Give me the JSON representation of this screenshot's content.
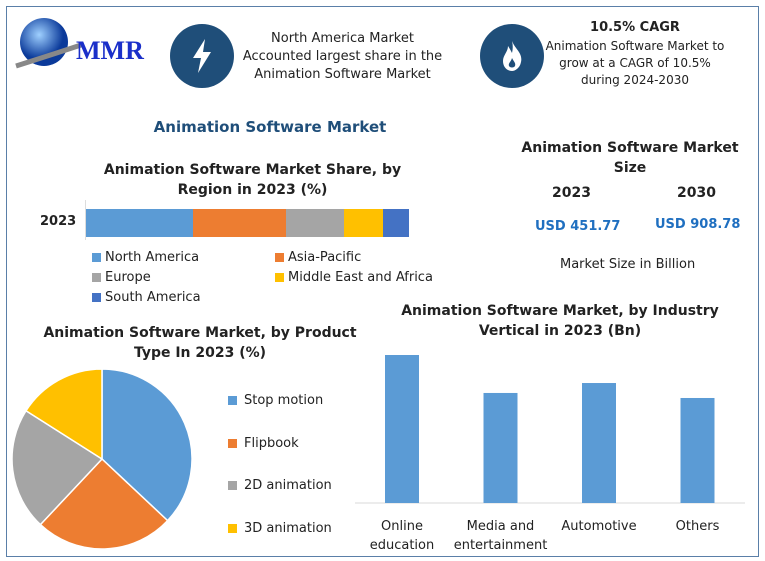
{
  "logo": {
    "text": "MMR"
  },
  "highlights": [
    {
      "icon": "lightning-icon",
      "text": "North America Market Accounted largest share in the Animation Software Market"
    },
    {
      "icon": "flame-icon",
      "title": "10.5% CAGR",
      "text": "Animation Software Market to grow at a CAGR of 10.5% during 2024-2030"
    }
  ],
  "main_title": "Animation Software Market",
  "market_size": {
    "title": "Animation Software Market Size",
    "years": [
      "2023",
      "2030"
    ],
    "values": [
      "USD 451.77",
      "USD 908.78"
    ],
    "note": "Market Size in Billion"
  },
  "colors": {
    "North America": "#5b9bd5",
    "Asia-Pacific": "#ed7d31",
    "Europe": "#a5a5a5",
    "Middle East and Africa": "#ffc000",
    "South America": "#4472c4",
    "accent": "#1f4e79"
  },
  "chart_data": [
    {
      "type": "bar",
      "orientation": "horizontal",
      "stacked": true,
      "title": "Animation Software Market Share, by Region in 2023 (%)",
      "categories": [
        "2023"
      ],
      "series": [
        {
          "name": "North America",
          "values": [
            33
          ]
        },
        {
          "name": "Asia-Pacific",
          "values": [
            29
          ]
        },
        {
          "name": "Europe",
          "values": [
            18
          ]
        },
        {
          "name": "Middle East and Africa",
          "values": [
            12
          ]
        },
        {
          "name": "South America",
          "values": [
            8
          ]
        }
      ],
      "legend": "bottom"
    },
    {
      "type": "pie",
      "title": "Animation Software Market, by Product Type In 2023 (%)",
      "labels": [
        "Stop motion",
        "Flipbook",
        "2D animation",
        "3D animation"
      ],
      "values": [
        37,
        25,
        22,
        16
      ],
      "colors": [
        "#5b9bd5",
        "#ed7d31",
        "#a5a5a5",
        "#ffc000"
      ],
      "legend": "right"
    },
    {
      "type": "bar",
      "title": "Animation Software Market, by Industry Vertical in 2023 (Bn)",
      "categories": [
        "Online education",
        "Media and entertainment",
        "Automotive",
        "Others"
      ],
      "values": [
        138.4,
        102.9,
        112.2,
        98.2
      ],
      "color": "#5b9bd5",
      "grid": false
    }
  ]
}
